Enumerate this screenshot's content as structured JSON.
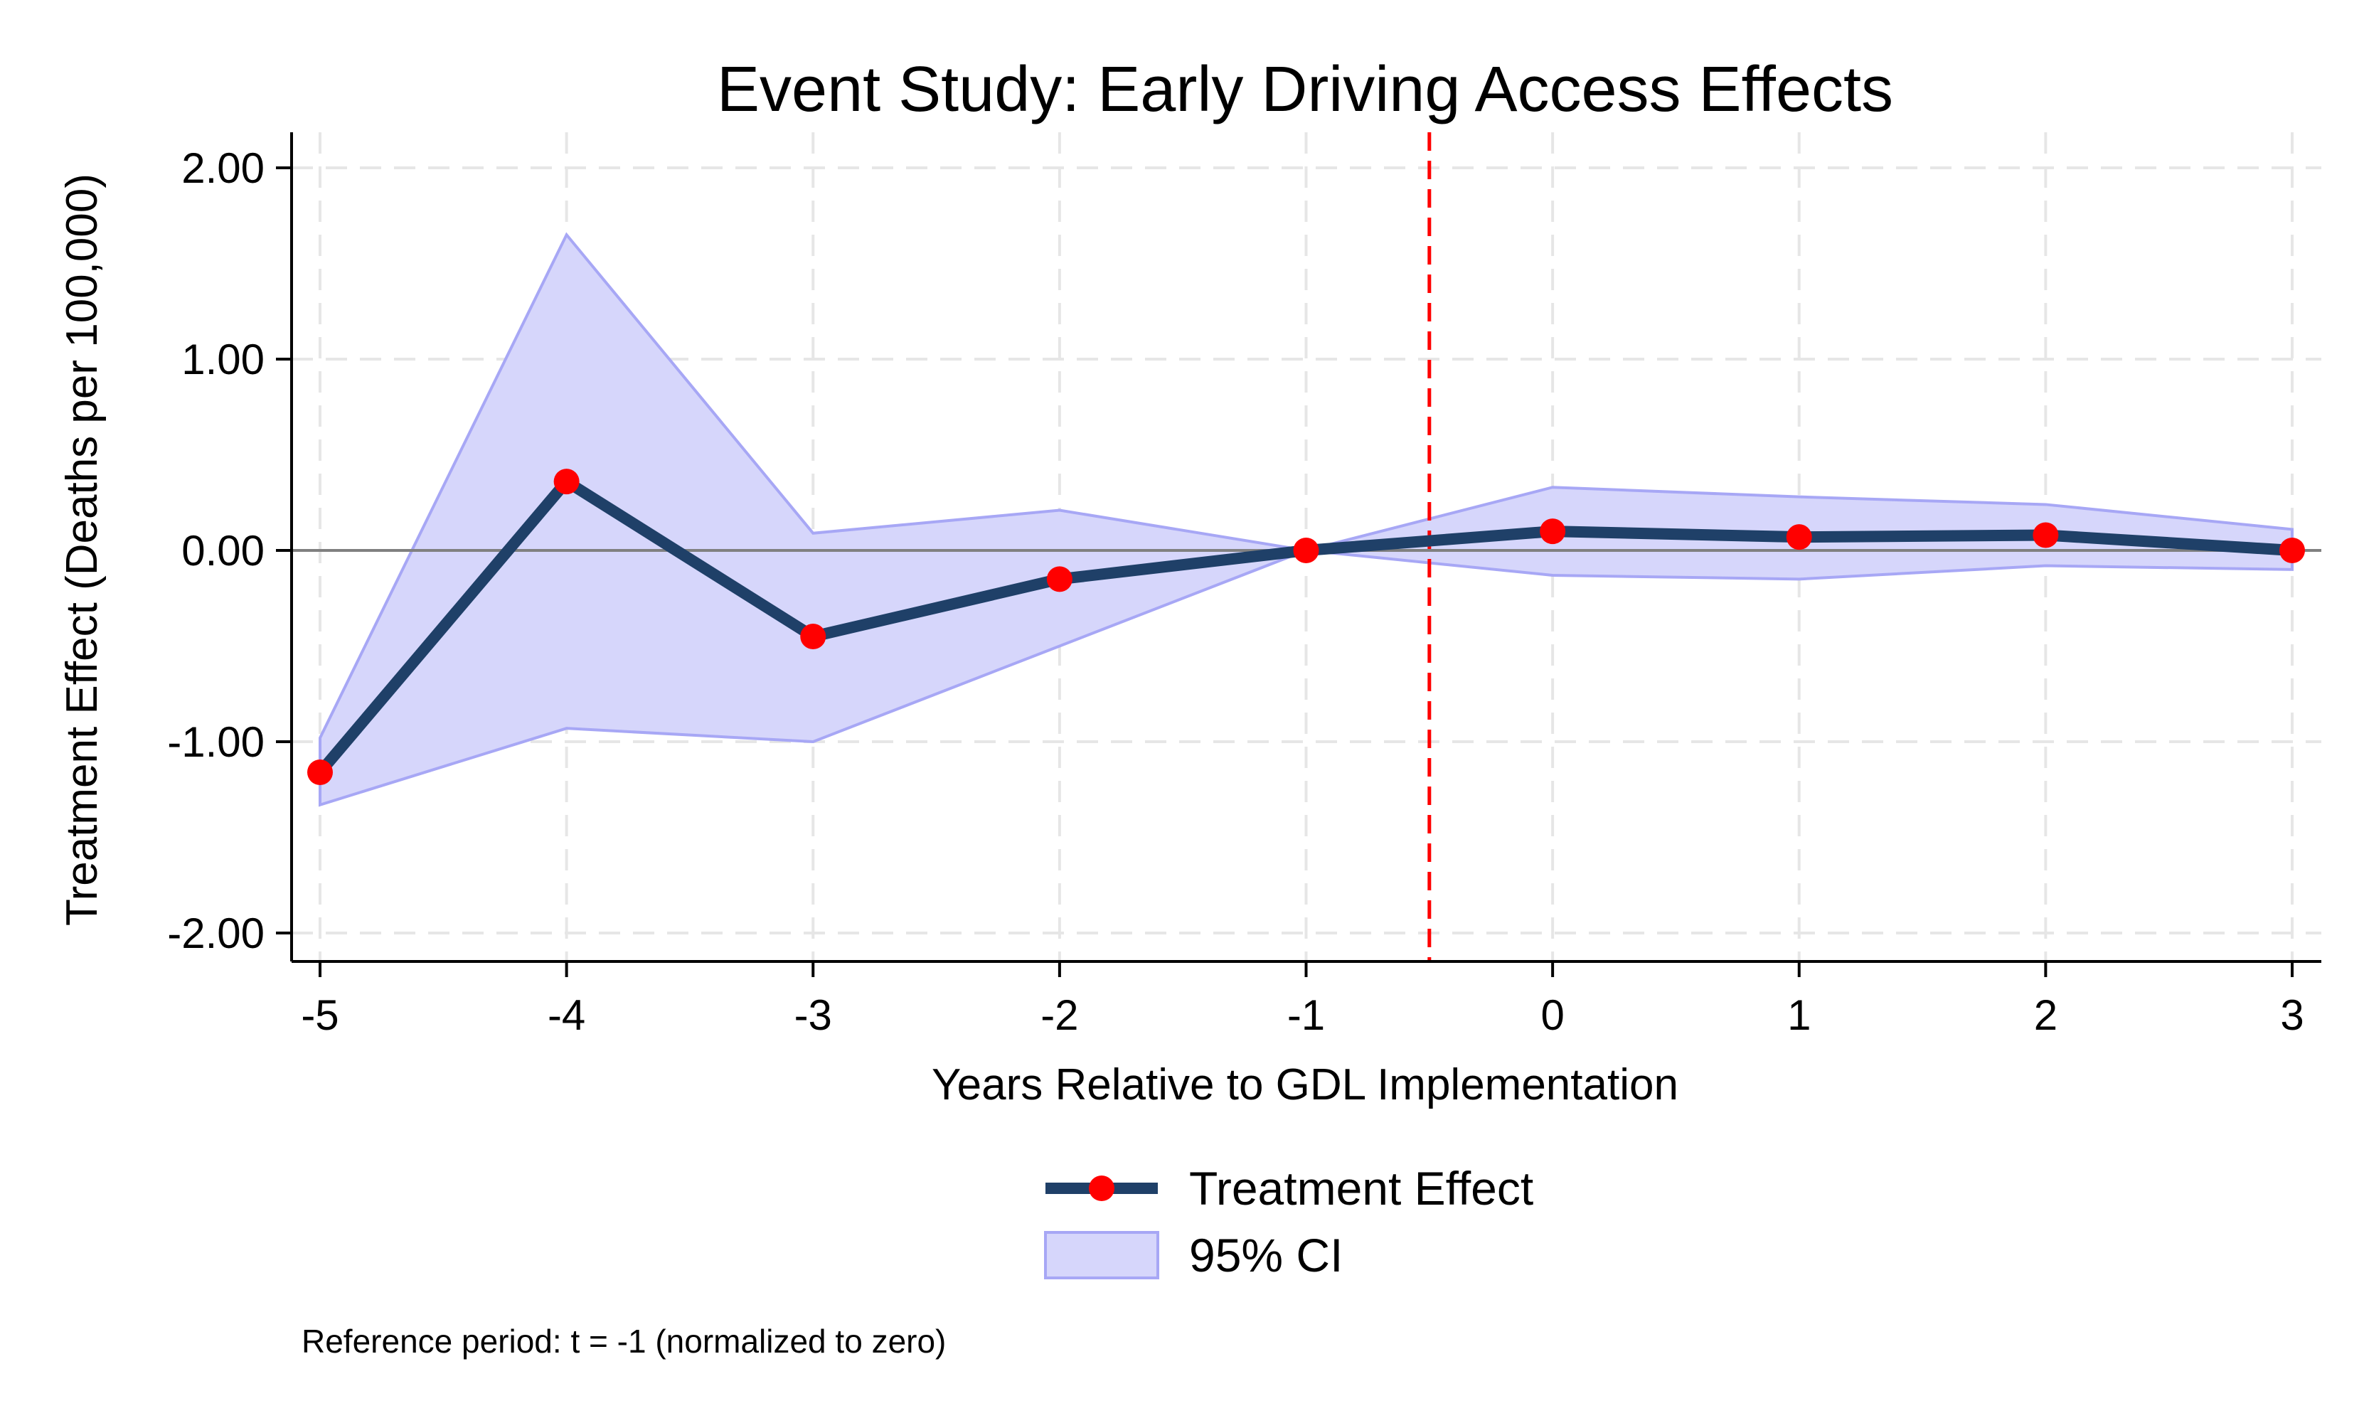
{
  "chart_data": {
    "type": "line",
    "title": "Event Study: Early Driving Access Effects",
    "xlabel": "Years Relative to GDL Implementation",
    "ylabel": "Treatment Effect (Deaths per 100,000)",
    "x": [
      -5,
      -4,
      -3,
      -2,
      -1,
      0,
      1,
      2,
      3
    ],
    "x_tick_labels": [
      "-5",
      "-4",
      "-3",
      "-2",
      "-1",
      "0",
      "1",
      "2",
      "3"
    ],
    "y_ticks": [
      2,
      1,
      0,
      -1,
      -2
    ],
    "y_tick_labels": [
      "2.00",
      "1.00",
      "0.00",
      "-1.00",
      "-2.00"
    ],
    "xlim": [
      -5.1,
      3.1
    ],
    "ylim": [
      -2.15,
      2.15
    ],
    "grid": true,
    "zero_line": 0,
    "vline": -0.5,
    "series": [
      {
        "name": "Treatment Effect",
        "kind": "line",
        "values": [
          -1.16,
          0.36,
          -0.45,
          -0.15,
          0.0,
          0.1,
          0.07,
          0.08,
          0.0
        ],
        "color": "#1f4068",
        "marker_color": "#ff0000"
      },
      {
        "name": "95% CI",
        "kind": "band",
        "lower": [
          -1.33,
          -0.93,
          -1.0,
          -0.5,
          0.0,
          -0.13,
          -0.15,
          -0.08,
          -0.1
        ],
        "upper": [
          -0.98,
          1.65,
          0.09,
          0.21,
          0.0,
          0.33,
          0.28,
          0.24,
          0.11
        ],
        "fill": "#d6d6fb",
        "stroke": "#a7a7f5"
      }
    ],
    "legend_position": "bottom-center",
    "note": "Reference period: t = -1 (normalized to zero)",
    "colors": {
      "vline": "#ff0000",
      "zero_line": "#808080",
      "grid": "#e6e6e6",
      "axis": "#000000"
    }
  }
}
